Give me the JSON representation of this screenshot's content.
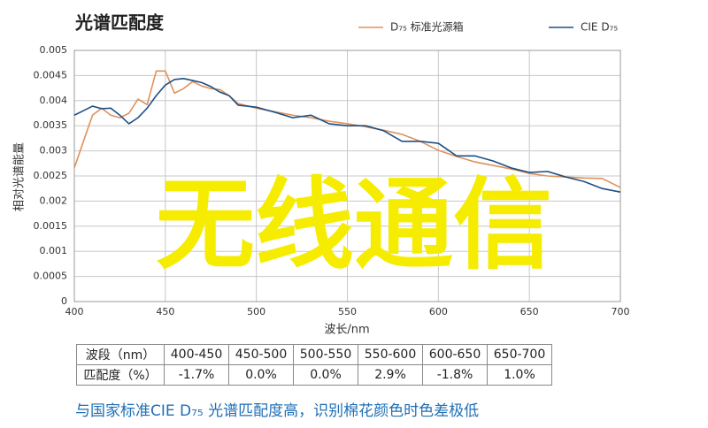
{
  "chart_data": {
    "type": "line",
    "title": "光谱匹配度",
    "x_label": "波长/nm",
    "y_label": "相对光谱能量",
    "x": [
      400,
      405,
      410,
      415,
      420,
      425,
      430,
      435,
      440,
      445,
      450,
      455,
      460,
      465,
      470,
      475,
      480,
      485,
      490,
      500,
      510,
      520,
      530,
      540,
      550,
      560,
      570,
      580,
      590,
      600,
      610,
      620,
      630,
      640,
      650,
      660,
      670,
      680,
      690,
      700
    ],
    "series": [
      {
        "name": "D₇₅ 标准光源箱",
        "color": "#e0915a",
        "values": [
          0.00266,
          0.00319,
          0.00371,
          0.00385,
          0.00371,
          0.00366,
          0.00375,
          0.00403,
          0.00392,
          0.00459,
          0.00459,
          0.00415,
          0.00424,
          0.00438,
          0.00429,
          0.00424,
          0.00422,
          0.0041,
          0.00394,
          0.00385,
          0.00378,
          0.00371,
          0.00366,
          0.00359,
          0.00354,
          0.00348,
          0.00341,
          0.00333,
          0.00319,
          0.00301,
          0.00289,
          0.00278,
          0.00271,
          0.00264,
          0.00255,
          0.0025,
          0.00248,
          0.00246,
          0.00245,
          0.00227
        ]
      },
      {
        "name": "CIE D₇₅",
        "color": "#1d4f86",
        "values": [
          0.00371,
          0.0038,
          0.00389,
          0.00384,
          0.00385,
          0.00371,
          0.00354,
          0.00366,
          0.00385,
          0.0041,
          0.00431,
          0.00442,
          0.00444,
          0.0044,
          0.00436,
          0.00428,
          0.00417,
          0.0041,
          0.00391,
          0.00387,
          0.00377,
          0.00366,
          0.00371,
          0.00354,
          0.0035,
          0.0035,
          0.0034,
          0.00319,
          0.00319,
          0.00315,
          0.0029,
          0.0029,
          0.0028,
          0.00266,
          0.00257,
          0.00259,
          0.00248,
          0.00239,
          0.00225,
          0.00218
        ]
      }
    ],
    "xlim": [
      400,
      700
    ],
    "xticks": [
      400,
      450,
      500,
      550,
      600,
      650,
      700
    ],
    "ylim": [
      0,
      0.005
    ],
    "yticks": [
      0,
      0.0005,
      0.001,
      0.0015,
      0.002,
      0.0025,
      0.003,
      0.0035,
      0.004,
      0.0045,
      0.005
    ],
    "grid": true,
    "legend": "top-right",
    "overlay_text": "无线通信"
  },
  "table": {
    "rows": [
      [
        "波段（nm）",
        "400-450",
        "450-500",
        "500-550",
        "550-600",
        "600-650",
        "650-700"
      ],
      [
        "匹配度（%）",
        "-1.7%",
        "0.0%",
        "0.0%",
        "2.9%",
        "-1.8%",
        "1.0%"
      ]
    ]
  },
  "footer": "与国家标准CIE D₇₅ 光谱匹配度高，识别棉花颜色时色差极低"
}
